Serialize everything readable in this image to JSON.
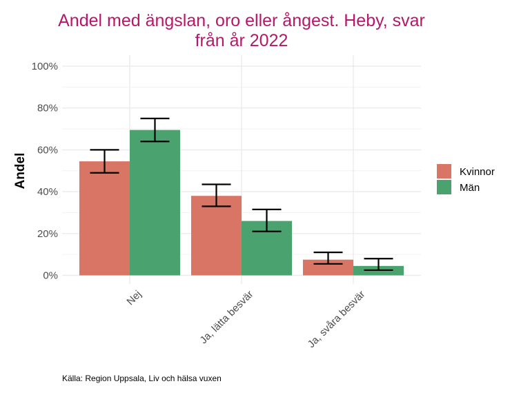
{
  "chart_data": {
    "type": "bar",
    "title_lines": [
      "Andel med ängslan, oro eller ångest. Heby, svar",
      "från år 2022"
    ],
    "ylabel": "Andel",
    "xlabel": "",
    "categories": [
      "Nej",
      "Ja, lätta besvär",
      "Ja, svåra besvär"
    ],
    "series": [
      {
        "name": "Kvinnor",
        "color": "#d87565",
        "values": [
          54.5,
          38,
          7.5
        ],
        "ci_low": [
          49,
          33,
          5.5
        ],
        "ci_high": [
          60,
          43.5,
          11
        ]
      },
      {
        "name": "Män",
        "color": "#4aa26f",
        "values": [
          69.5,
          26,
          4.5
        ],
        "ci_low": [
          64,
          21,
          2.5
        ],
        "ci_high": [
          75,
          31.5,
          8
        ]
      }
    ],
    "ylim": [
      0,
      100
    ],
    "yticks": [
      0,
      20,
      40,
      60,
      80,
      100
    ],
    "ytick_labels": [
      "0%",
      "20%",
      "40%",
      "60%",
      "80%",
      "100%"
    ],
    "grid": true,
    "legend_position": "right",
    "caption": "Källa: Region Uppsala, Liv och hälsa vuxen"
  }
}
